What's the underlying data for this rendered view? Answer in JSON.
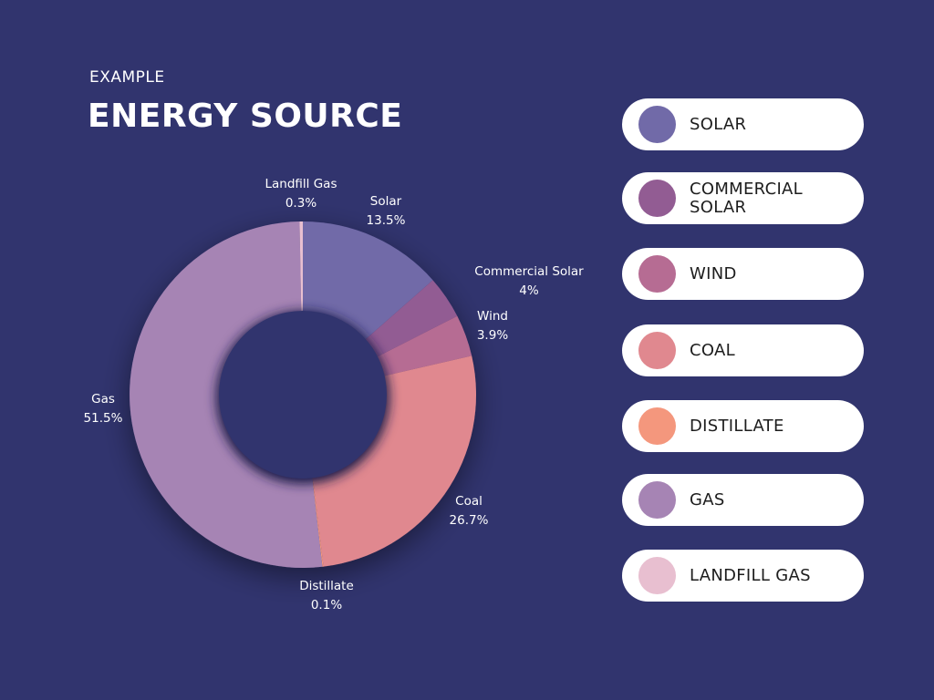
{
  "header": {
    "subtitle": "EXAMPLE",
    "title": "ENERGY SOURCE"
  },
  "chart_data": {
    "type": "pie",
    "variant": "donut",
    "title": "ENERGY SOURCE",
    "subtitle": "EXAMPLE",
    "series": [
      {
        "name": "Solar",
        "value": 13.5,
        "value_label": "13.5%",
        "color": "#716aa8"
      },
      {
        "name": "Commercial Solar",
        "value": 4,
        "value_label": "4%",
        "color": "#925c93"
      },
      {
        "name": "Wind",
        "value": 3.9,
        "value_label": "3.9%",
        "color": "#b66c93"
      },
      {
        "name": "Coal",
        "value": 26.7,
        "value_label": "26.7%",
        "color": "#e0888f"
      },
      {
        "name": "Distillate",
        "value": 0.1,
        "value_label": "0.1%",
        "color": "#f4977d"
      },
      {
        "name": "Gas",
        "value": 51.5,
        "value_label": "51.5%",
        "color": "#a684b4"
      },
      {
        "name": "Landfill Gas",
        "value": 0.3,
        "value_label": "0.3%",
        "color": "#e8bfd0"
      }
    ],
    "legend_position": "right"
  },
  "legend": {
    "items": [
      {
        "label": "SOLAR",
        "color": "#716aa8"
      },
      {
        "label": "COMMERCIAL\nSOLAR",
        "color": "#925c93"
      },
      {
        "label": "WIND",
        "color": "#b66c93"
      },
      {
        "label": "COAL",
        "color": "#e0888f"
      },
      {
        "label": "DISTILLATE",
        "color": "#f4977d"
      },
      {
        "label": "GAS",
        "color": "#a684b4"
      },
      {
        "label": "LANDFILL GAS",
        "color": "#e8bfd0"
      }
    ]
  }
}
